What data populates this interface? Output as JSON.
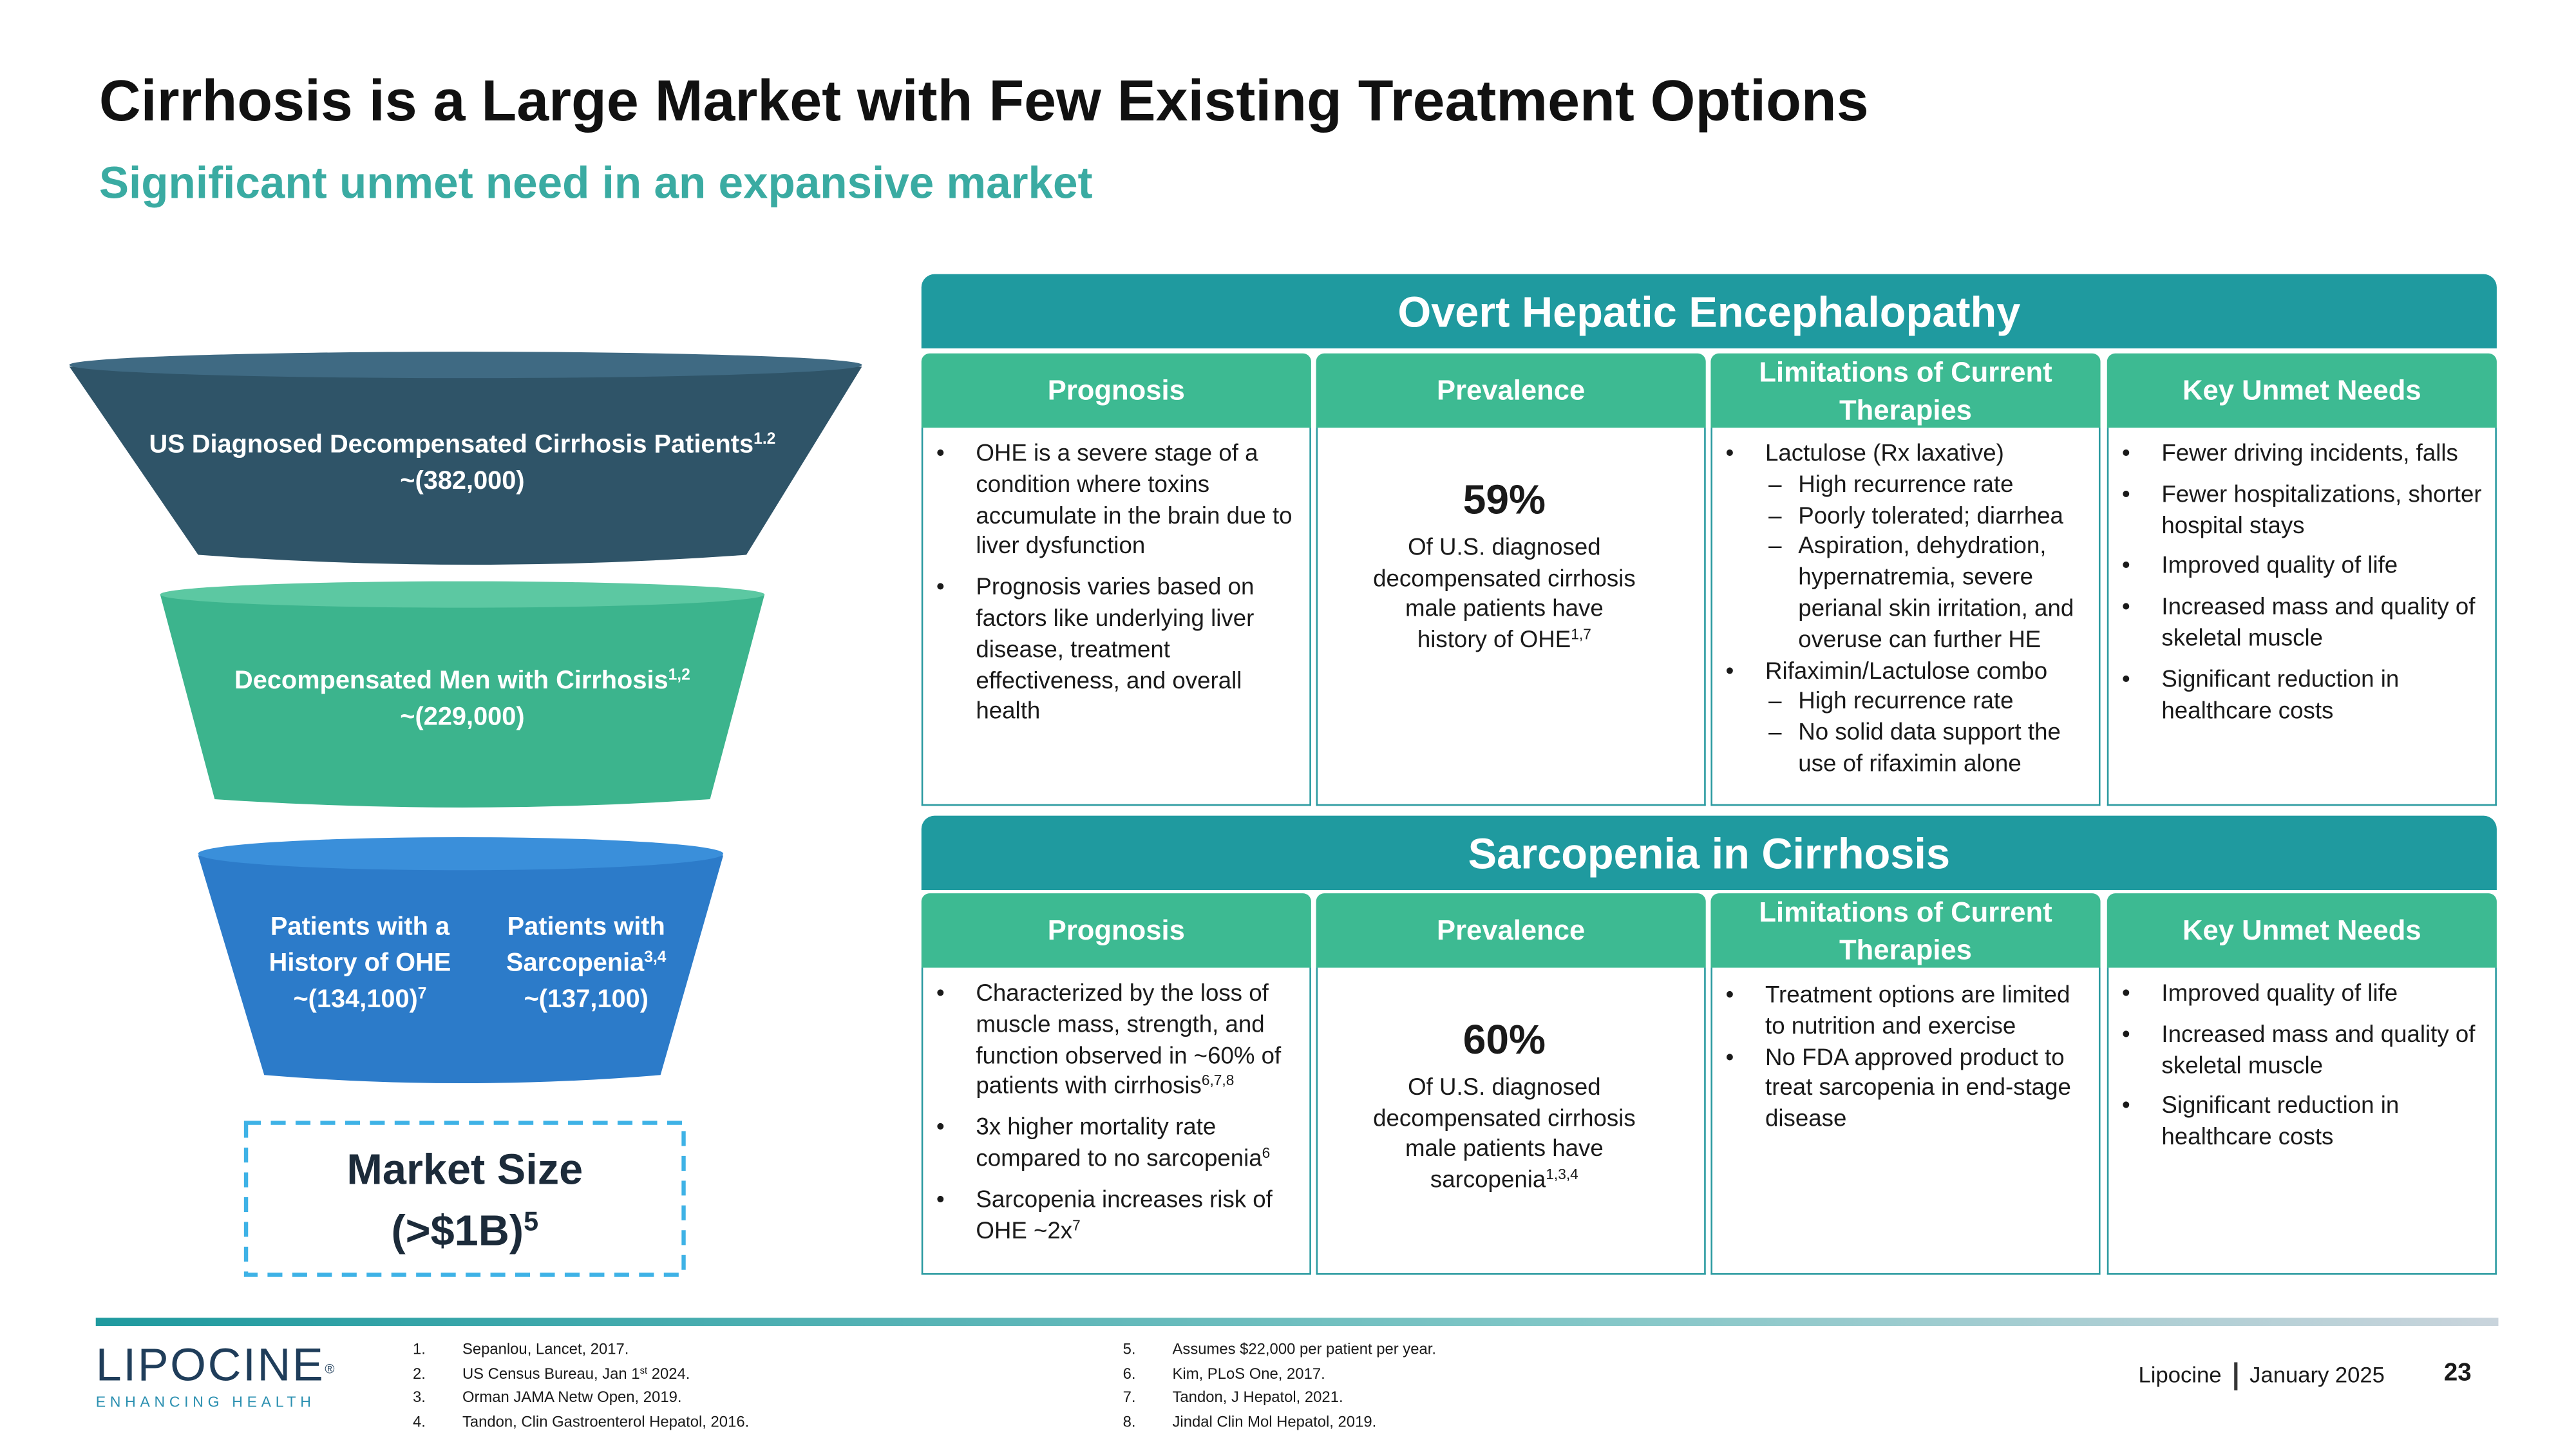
{
  "header": {
    "title": "Cirrhosis is a Large Market with Few Existing Treatment Options",
    "subtitle": "Significant unmet need in an expansive market"
  },
  "funnel": {
    "levels": [
      {
        "label": "US Diagnosed Decompensated Cirrhosis Patients",
        "label_sup": "1.2",
        "value": "~(382,000)"
      },
      {
        "label": "Decompensated Men with Cirrhosis",
        "label_sup": "1,2",
        "value": "~(229,000)"
      }
    ],
    "split": [
      {
        "label": "Patients with a History of OHE",
        "value": "~(134,100)",
        "value_sup": "7"
      },
      {
        "label": "Patients with Sarcopenia",
        "label_sup": "3,4",
        "value": "~(137,100)"
      }
    ],
    "market_size": {
      "label": "Market Size",
      "value": "(>$1B)",
      "value_sup": "5"
    }
  },
  "sections": [
    {
      "title": "Overt Hepatic Encephalopathy",
      "columns": [
        {
          "heading": "Prognosis",
          "bullets": [
            {
              "text": "OHE is a severe stage of a condition where toxins accumulate in the brain due to liver dysfunction"
            },
            {
              "text": "Prognosis varies based on factors like underlying liver disease, treatment effectiveness, and overall health"
            }
          ]
        },
        {
          "heading": "Prevalence",
          "stat": "59%",
          "text": "Of U.S. diagnosed decompensated cirrhosis male patients have history of OHE",
          "sup": "1,7"
        },
        {
          "heading": "Limitations of Current Therapies",
          "bullets": [
            {
              "text": "Lactulose (Rx laxative)",
              "sub": [
                "High recurrence rate",
                "Poorly tolerated; diarrhea",
                "Aspiration, dehydration, hypernatremia, severe perianal skin irritation, and overuse can further HE"
              ]
            },
            {
              "text": "Rifaximin/Lactulose combo",
              "sub": [
                "High recurrence rate",
                "No solid data support the use of rifaximin alone"
              ]
            }
          ]
        },
        {
          "heading": "Key Unmet Needs",
          "bullets": [
            {
              "text": "Fewer driving incidents, falls"
            },
            {
              "text": "Fewer hospitalizations, shorter hospital stays"
            },
            {
              "text": "Improved quality of life"
            },
            {
              "text": "Increased mass and quality of skeletal muscle"
            },
            {
              "text": "Significant reduction in healthcare costs"
            }
          ]
        }
      ]
    },
    {
      "title": "Sarcopenia in Cirrhosis",
      "columns": [
        {
          "heading": "Prognosis",
          "bullets": [
            {
              "text": "Characterized by the loss of muscle mass, strength, and function observed in ~60% of patients with cirrhosis",
              "sup": "6,7,8"
            },
            {
              "text": "3x higher mortality rate compared to no sarcopenia",
              "sup": "6"
            },
            {
              "text": "Sarcopenia increases risk of OHE ~2x",
              "sup": "7"
            }
          ]
        },
        {
          "heading": "Prevalence",
          "stat": "60%",
          "text": "Of U.S. diagnosed decompensated cirrhosis male patients have sarcopenia",
          "sup": "1,3,4"
        },
        {
          "heading": "Limitations of Current Therapies",
          "bullets": [
            {
              "text": "Treatment options are limited to nutrition and exercise"
            },
            {
              "text": "No FDA approved product to treat sarcopenia in end-stage disease"
            }
          ]
        },
        {
          "heading": "Key Unmet Needs",
          "bullets": [
            {
              "text": "Improved quality of life"
            },
            {
              "text": "Increased mass and quality of skeletal muscle"
            },
            {
              "text": "Significant reduction in healthcare costs"
            }
          ]
        }
      ]
    }
  ],
  "footnotes": [
    {
      "num": "1.",
      "text": "Sepanlou, Lancet, 2017."
    },
    {
      "num": "2.",
      "text": "US Census Bureau, Jan 1",
      "sup": "st",
      "after": " 2024."
    },
    {
      "num": "3.",
      "text": "Orman JAMA Netw Open, 2019."
    },
    {
      "num": "4.",
      "text": "Tandon, Clin Gastroenterol Hepatol, 2016."
    },
    {
      "num": "5.",
      "text": "Assumes $22,000 per patient per year."
    },
    {
      "num": "6.",
      "text": "Kim, PLoS One, 2017."
    },
    {
      "num": "7.",
      "text": "Tandon, J Hepatol, 2021."
    },
    {
      "num": "8.",
      "text": "Jindal Clin Mol Hepatol, 2019."
    }
  ],
  "logo": {
    "name": "LIPOCINE",
    "mark": "®",
    "tagline": "ENHANCING HEALTH"
  },
  "footer": {
    "company": "Lipocine",
    "date": "January 2025",
    "page": "23"
  }
}
